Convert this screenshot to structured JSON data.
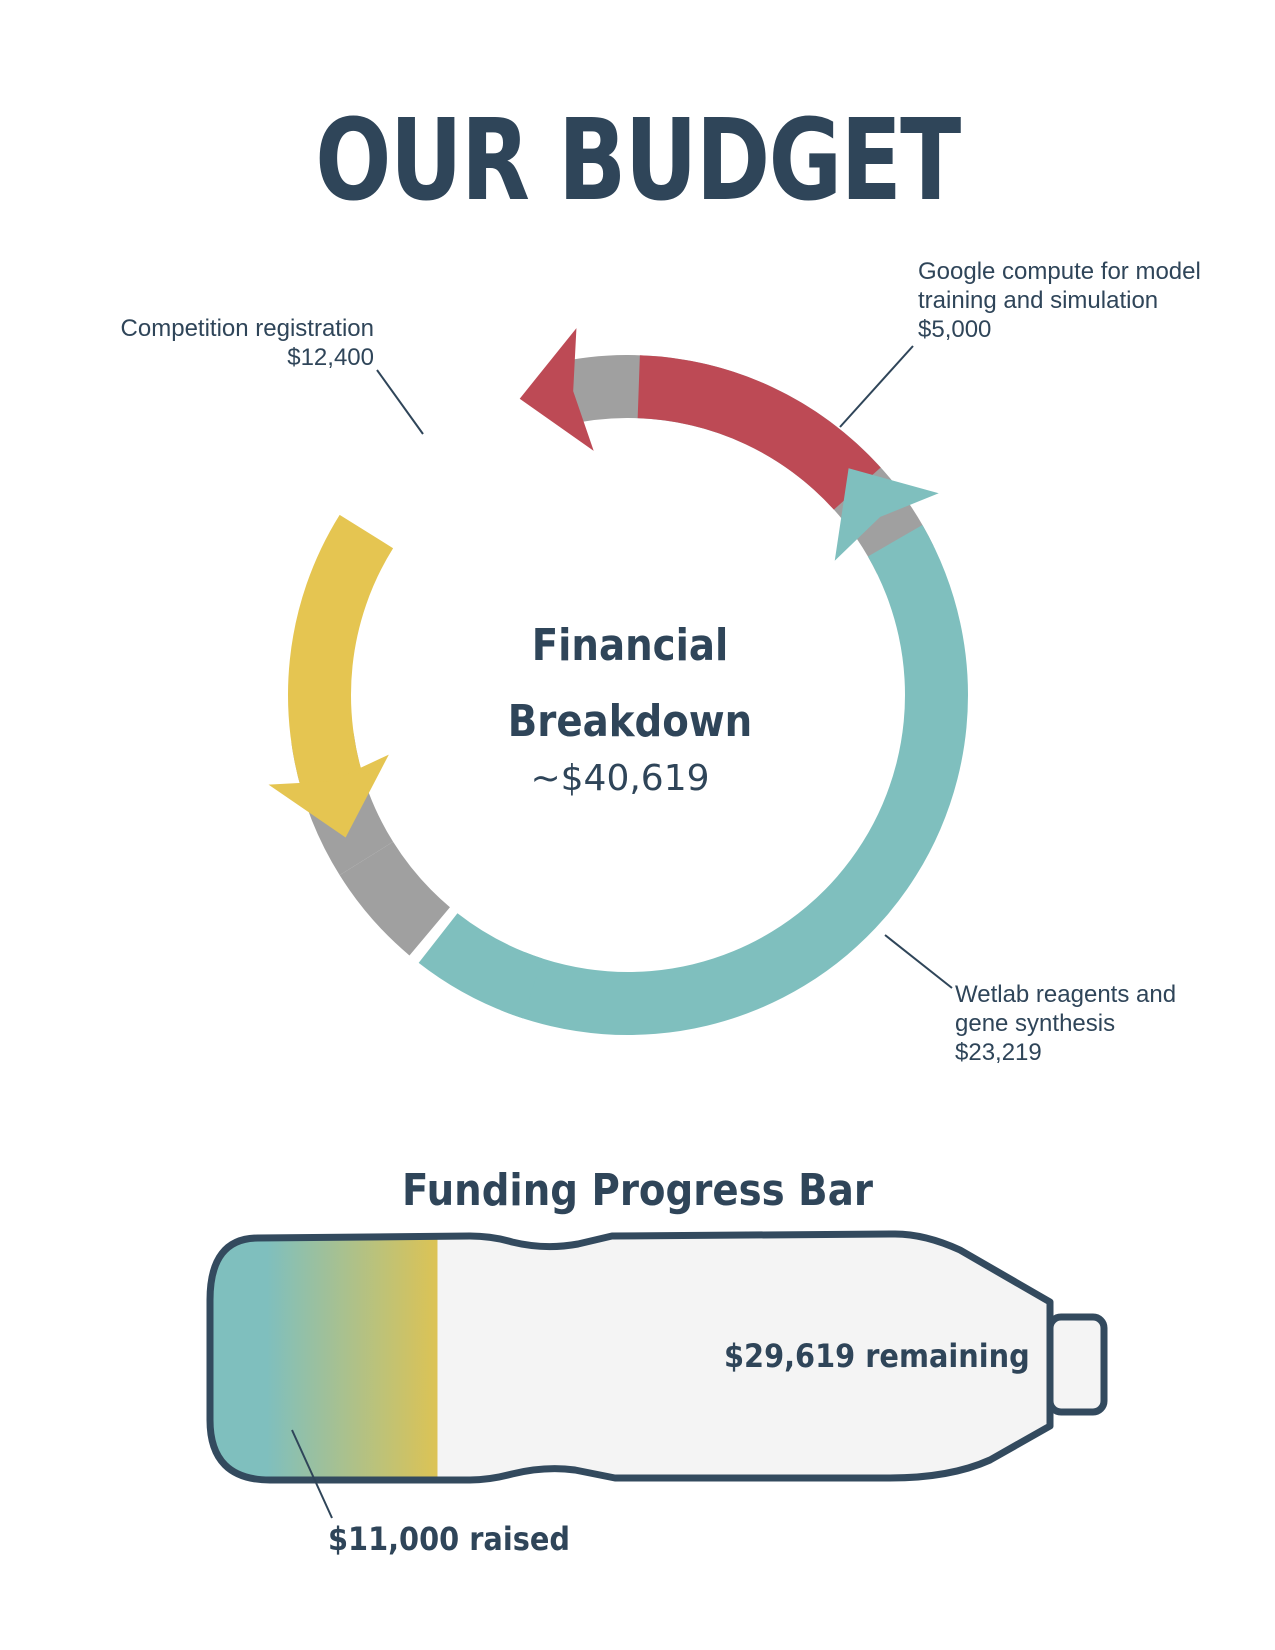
{
  "header": {
    "title": "OUR BUDGET"
  },
  "donut": {
    "center_line1": "Financial",
    "center_line2": "Breakdown",
    "center_total": "~$40,619"
  },
  "labels": {
    "google": {
      "line1": "Google compute for model",
      "line2": "training and simulation",
      "amount": "$5,000"
    },
    "competition": {
      "line1": "Competition registration",
      "amount": "$12,400"
    },
    "wetlab": {
      "line1": "Wetlab reagents and",
      "line2": "gene synthesis",
      "amount": "$23,219"
    }
  },
  "progress": {
    "title": "Funding Progress Bar",
    "raised_label": "$11,000 raised",
    "remaining_label": "$29,619 remaining"
  },
  "colors": {
    "text": "#2f4559",
    "google": "#bd4a55",
    "competition": "#e5c551",
    "wetlab": "#7fbfbe",
    "gap": "#a0a0a0",
    "bottle_outline": "#334a5e",
    "bottle_fill": "#f4f4f4"
  },
  "chart_data": [
    {
      "type": "pie",
      "categories": [
        "Wetlab reagents and gene synthesis",
        "Competition registration",
        "Google compute for model training and simulation"
      ],
      "values": [
        23219,
        12400,
        5000
      ],
      "total_label": "~$40,619"
    },
    {
      "type": "bar",
      "categories": [
        "raised",
        "remaining"
      ],
      "values": [
        11000,
        29619
      ],
      "title": "Funding Progress Bar"
    }
  ]
}
